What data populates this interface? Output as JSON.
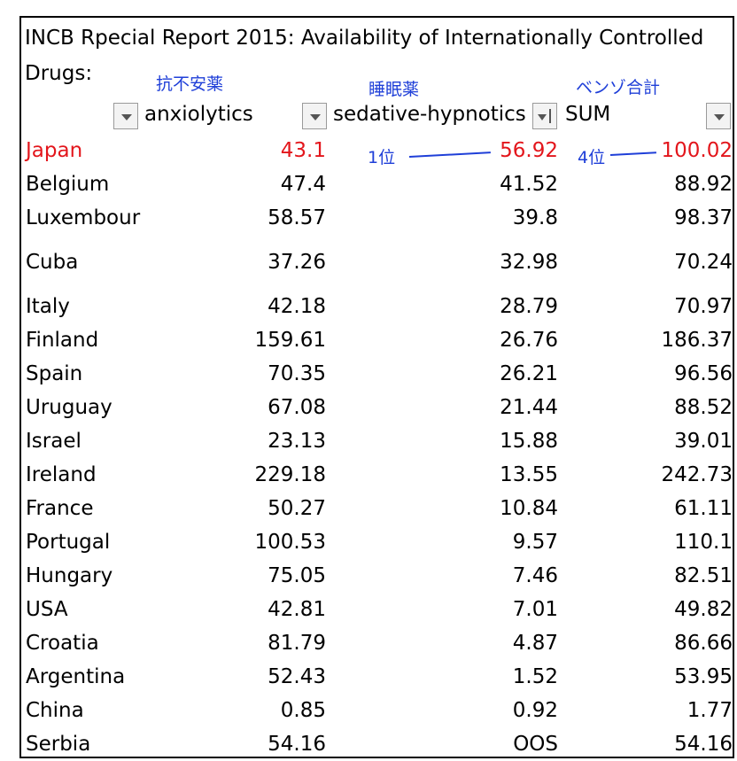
{
  "title_line1": "INCB Rpecial Report 2015: Availability of Internationally Controlled",
  "title_line2": "Drugs:",
  "annotations": {
    "anxiolytics_jp": "抗不安薬",
    "hypnotics_jp": "睡眠薬",
    "sum_jp": "ベンゾ合計",
    "rank_hypnotics": "1位",
    "rank_sum": "4位"
  },
  "columns": {
    "anxiolytics": "anxiolytics",
    "hypnotics": "sedative-hypnotics",
    "sum": "SUM"
  },
  "highlight_color": "#e3161c",
  "annotation_color": "#1f3fd8",
  "rows": [
    {
      "country": "Japan",
      "anx": "43.1",
      "hyp": "56.92",
      "sum": "100.02"
    },
    {
      "country": "Belgium",
      "anx": "47.4",
      "hyp": "41.52",
      "sum": "88.92"
    },
    {
      "country": "Luxembour",
      "anx": "58.57",
      "hyp": "39.8",
      "sum": "98.37"
    },
    {
      "country": "Cuba",
      "anx": "37.26",
      "hyp": "32.98",
      "sum": "70.24"
    },
    {
      "country": "Italy",
      "anx": "42.18",
      "hyp": "28.79",
      "sum": "70.97"
    },
    {
      "country": "Finland",
      "anx": "159.61",
      "hyp": "26.76",
      "sum": "186.37"
    },
    {
      "country": "Spain",
      "anx": "70.35",
      "hyp": "26.21",
      "sum": "96.56"
    },
    {
      "country": "Uruguay",
      "anx": "67.08",
      "hyp": "21.44",
      "sum": "88.52"
    },
    {
      "country": "Israel",
      "anx": "23.13",
      "hyp": "15.88",
      "sum": "39.01"
    },
    {
      "country": "Ireland",
      "anx": "229.18",
      "hyp": "13.55",
      "sum": "242.73"
    },
    {
      "country": "France",
      "anx": "50.27",
      "hyp": "10.84",
      "sum": "61.11"
    },
    {
      "country": "Portugal",
      "anx": "100.53",
      "hyp": "9.57",
      "sum": "110.1"
    },
    {
      "country": "Hungary",
      "anx": "75.05",
      "hyp": "7.46",
      "sum": "82.51"
    },
    {
      "country": "USA",
      "anx": "42.81",
      "hyp": "7.01",
      "sum": "49.82"
    },
    {
      "country": "Croatia",
      "anx": "81.79",
      "hyp": "4.87",
      "sum": "86.66"
    },
    {
      "country": "Argentina",
      "anx": "52.43",
      "hyp": "1.52",
      "sum": "53.95"
    },
    {
      "country": "China",
      "anx": "0.85",
      "hyp": "0.92",
      "sum": "1.77"
    },
    {
      "country": "Serbia",
      "anx": "54.16",
      "hyp": "OOS",
      "sum": "54.16"
    }
  ]
}
